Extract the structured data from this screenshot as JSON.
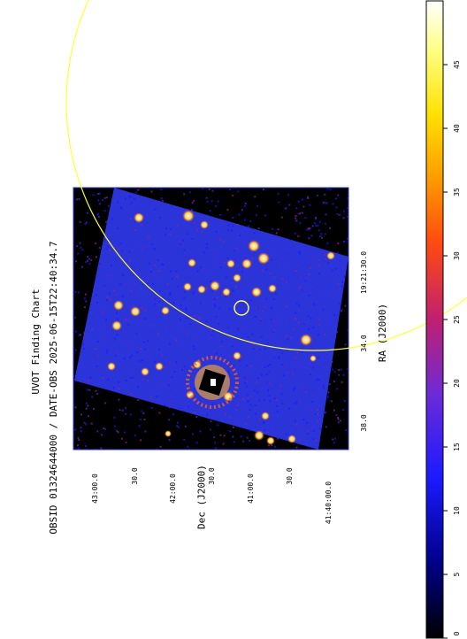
{
  "title": "UVOT Finding Chart",
  "subtitle": "OBSID 01324644000 / DATE-OBS 2025-06-15T22:40:34.7",
  "axes": {
    "x_label": "RA (J2000)",
    "y_label": "Dec (J2000)",
    "ra_ticks": [
      "38.0",
      "34.0",
      "19:21:30.0"
    ],
    "dec_ticks": [
      "43:00.0",
      "30.0",
      "42:00.0",
      "30.0",
      "41:00.0",
      "30.0",
      "41:40:00.0"
    ]
  },
  "colorbar": {
    "ticks": [
      "0",
      "5",
      "10",
      "15",
      "20",
      "25",
      "30",
      "35",
      "40",
      "45"
    ],
    "colors": [
      "#000000",
      "#00008a",
      "#1a1aff",
      "#6a2bd8",
      "#c02070",
      "#ff4a10",
      "#ff9a00",
      "#ffe000",
      "#ffff80",
      "#ffffff"
    ]
  },
  "image_colors": {
    "background": "#2b34d8",
    "frame": "#000000",
    "circle": "#ffff33",
    "source_marker": "#ffff66"
  }
}
